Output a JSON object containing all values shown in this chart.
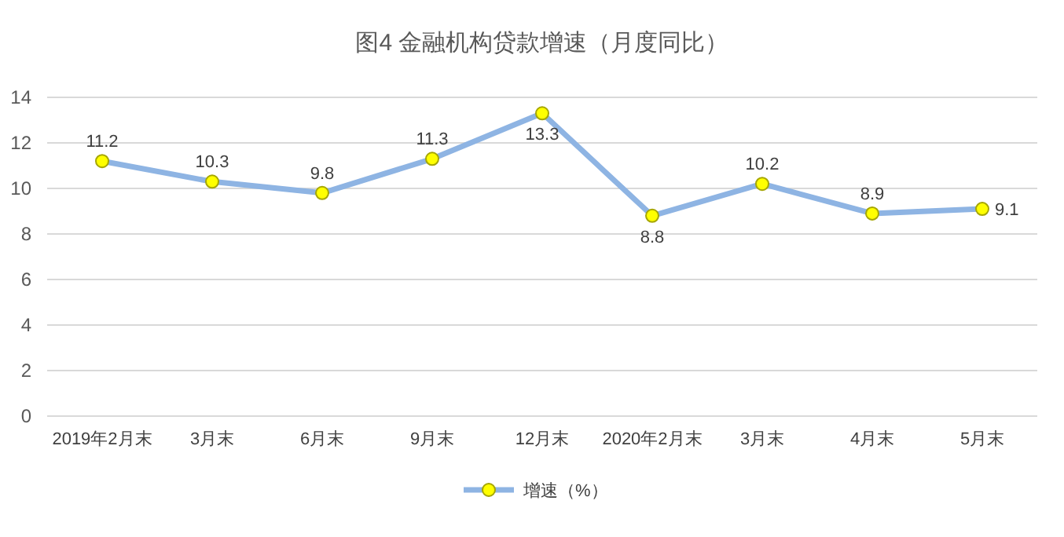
{
  "chart_data": {
    "type": "line",
    "title": "图4  金融机构贷款增速（月度同比）",
    "categories": [
      "2019年2月末",
      "3月末",
      "6月末",
      "9月末",
      "12月末",
      "2020年2月末",
      "3月末",
      "4月末",
      "5月末"
    ],
    "series": [
      {
        "name": "增速（%）",
        "color": "#8eb4e3",
        "values": [
          11.2,
          10.3,
          9.8,
          11.3,
          13.3,
          8.8,
          10.2,
          8.9,
          9.1
        ]
      }
    ],
    "ylim": [
      0,
      14
    ],
    "yticks": [
      0,
      2,
      4,
      6,
      8,
      10,
      12,
      14
    ],
    "grid": "y",
    "legend": "bottom",
    "marker": "circle",
    "data_labels": true
  }
}
